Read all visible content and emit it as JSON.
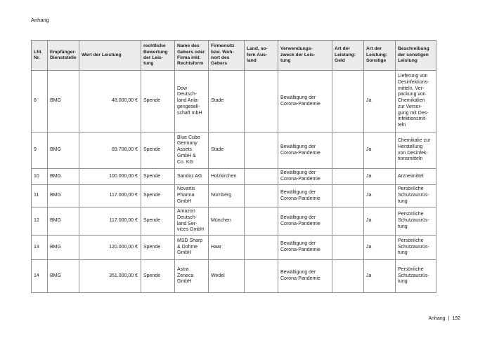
{
  "colors": {
    "header_bg": "#ebebeb",
    "border": "#8f8f8f",
    "text": "#1c1c1c",
    "page_bg": "#ffffff"
  },
  "page": {
    "running_header": "Anhang",
    "footer": {
      "section": "Anhang",
      "separator": "|",
      "page_number": "192"
    }
  },
  "table": {
    "columns": [
      "Lfd.\nNr.",
      "Empfänger-\nDienststelle",
      "Wert der Leistung",
      "rechtliche\nBewertung\nder Leis-\ntung",
      "Name des\nGebers oder\nFirma inkl.\nRechtsform",
      "Firmensitz\nbzw. Woh-\nnort des\nGebers",
      "Land, so-\nfern Aus-\nland",
      "Verwendungs-\nzweck der Leis-\ntung",
      "Art der\nLeistung:\nGeld",
      "Art der\nLeistung:\nSonstige",
      "Beschreibung\nder sonstigen\nLeistung"
    ],
    "rows": [
      [
        "8",
        "BMG",
        "48.000,00 €",
        "Spende",
        "Dow\nDeutsch-\nland Anla-\ngengesell-\nschaft mbH",
        "Stade",
        "",
        "Bewältigung der\nCorona-Pandemie",
        "",
        "Ja",
        "Lieferung von\nDesinfektions-\nmitteln, Ver-\npackung von\nChemikalien\nzur Versor-\ngung mit Des-\ninfektionsmit-\nteln"
      ],
      [
        "9",
        "BMG",
        "89.708,00 €",
        "Spende",
        "Blue Cube\nGermany\nAssets\nGmbH &\nCo. KG",
        "Stade",
        "",
        "Bewältigung der\nCorona-Pandemie",
        "",
        "Ja",
        "Chemikalie zur\nHerstellung\nvon Desinfek-\ntionsmitteln"
      ],
      [
        "10",
        "BMG",
        "100.000,00 €",
        "Spende",
        "Sandoz AG",
        "Holzkirchen",
        "",
        "Bewältigung der\nCorona-Pandemie",
        "",
        "Ja",
        "Arzneimittel"
      ],
      [
        "11",
        "BMG",
        "117.000,00 €",
        "Spende",
        "Novartis\nPharma\nGmbH",
        "Nürnberg",
        "",
        "Bewältigung der\nCorona-Pandemie",
        "",
        "Ja",
        "Persönliche\nSchutzausrüs-\ntung"
      ],
      [
        "12",
        "BMG",
        "117.000,00 €",
        "Spende",
        "Amazon\nDeutsch-\nland Ser-\nvices GmbH",
        "München",
        "",
        "Bewältigung der\nCorona-Pandemie",
        "",
        "Ja",
        "Persönliche\nSchutzausrüs-\ntung"
      ],
      [
        "13",
        "BMG",
        "120.000,00 €",
        "Spende",
        "MSD Sharp\n& Dohme\nGmbH",
        "Haar",
        "",
        "Bewältigung der\nCorona-Pandemie",
        "",
        "Ja",
        "Persönliche\nSchutzausrüs-\ntung"
      ],
      [
        "14",
        "BMG",
        "351.000,00 €",
        "Spende",
        "Astra\nZeneca\nGmbH",
        "Wedel",
        "",
        "Bewältigung der\nCorona-Pandemie",
        "",
        "Ja",
        "Persönliche\nSchutzausrüs-\ntung"
      ]
    ]
  }
}
